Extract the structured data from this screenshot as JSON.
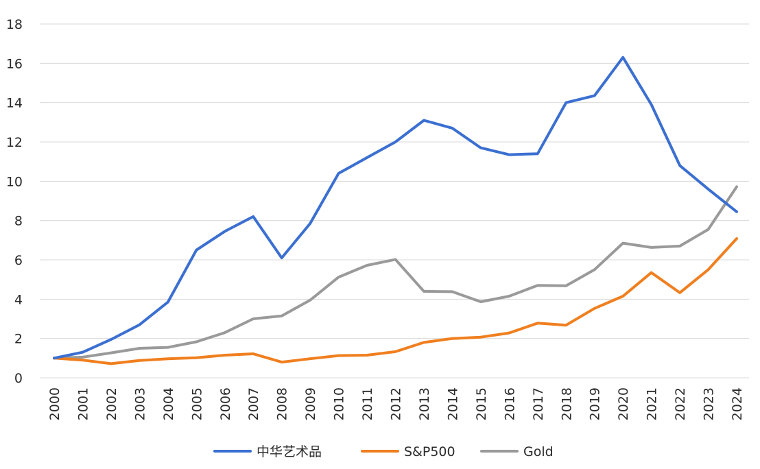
{
  "chart_data": {
    "type": "line",
    "title": "",
    "xlabel": "",
    "ylabel": "",
    "ylim": [
      0,
      18
    ],
    "yticks": [
      0,
      2,
      4,
      6,
      8,
      10,
      12,
      14,
      16,
      18
    ],
    "grid": true,
    "legend_position": "bottom",
    "categories": [
      "2000",
      "2001",
      "2002",
      "2003",
      "2004",
      "2005",
      "2006",
      "2007",
      "2008",
      "2009",
      "2010",
      "2011",
      "2012",
      "2013",
      "2014",
      "2015",
      "2016",
      "2017",
      "2018",
      "2019",
      "2020",
      "2021",
      "2022",
      "2023",
      "2024"
    ],
    "series": [
      {
        "name": "中华艺术品",
        "color": "#3b6fd1",
        "values": [
          1.0,
          1.3,
          1.95,
          2.7,
          3.85,
          6.5,
          7.45,
          8.2,
          6.1,
          7.85,
          10.4,
          11.2,
          12.0,
          13.1,
          12.7,
          11.7,
          11.35,
          11.4,
          14.0,
          14.35,
          16.3,
          13.9,
          10.8,
          9.6,
          8.45
        ]
      },
      {
        "name": "S&P500",
        "color": "#f07f1f",
        "values": [
          1.0,
          0.9,
          0.72,
          0.88,
          0.97,
          1.02,
          1.15,
          1.22,
          0.8,
          0.97,
          1.13,
          1.15,
          1.33,
          1.8,
          2.0,
          2.07,
          2.28,
          2.78,
          2.68,
          3.53,
          4.15,
          5.35,
          4.33,
          5.5,
          7.08
        ]
      },
      {
        "name": "Gold",
        "color": "#9a9a9a",
        "values": [
          1.0,
          1.05,
          1.27,
          1.5,
          1.55,
          1.83,
          2.3,
          3.0,
          3.15,
          3.95,
          5.12,
          5.72,
          6.02,
          4.4,
          4.38,
          3.87,
          4.15,
          4.7,
          4.68,
          5.5,
          6.85,
          6.63,
          6.7,
          7.55,
          9.72
        ]
      }
    ]
  }
}
